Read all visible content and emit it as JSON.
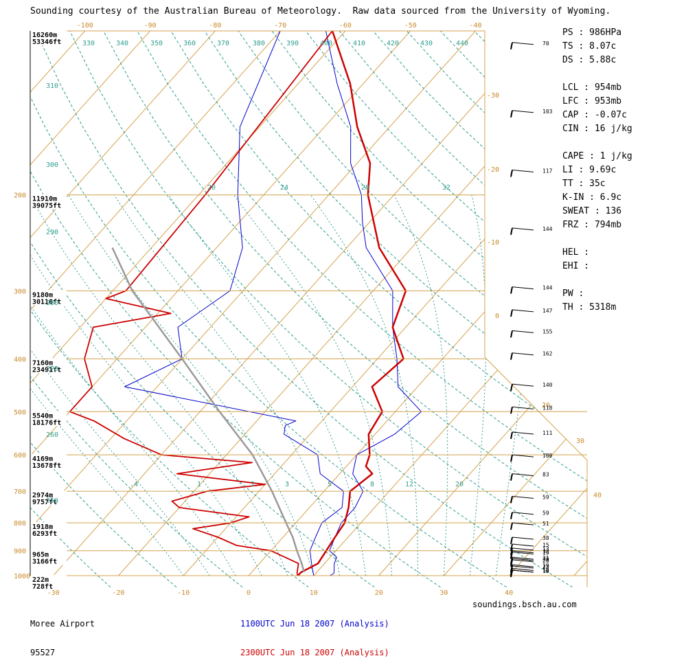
{
  "header": "Sounding courtesy of the Australian Bureau of Meteorology.  Raw data sourced from the University of Wyoming.",
  "footer": {
    "station_name": "Moree Airport",
    "station_id": "95527",
    "run1": "1100UTC Jun 18 2007 (Analysis)",
    "run2": "2300UTC Jun 18 2007 (Analysis)",
    "site": "soundings.bsch.au.com"
  },
  "stats": [
    {
      "label": "PS : 986HPa"
    },
    {
      "label": "TS : 8.07c"
    },
    {
      "label": "DS : 5.88c"
    },
    {
      "label": ""
    },
    {
      "label": "LCL : 954mb"
    },
    {
      "label": "LFC : 953mb"
    },
    {
      "label": "CAP : -0.07c"
    },
    {
      "label": "CIN : 16 j/kg"
    },
    {
      "label": ""
    },
    {
      "label": "CAPE : 1 j/kg"
    },
    {
      "label": "LI : 9.69c"
    },
    {
      "label": "TT : 35c"
    },
    {
      "label": "K-IN : 6.9c"
    },
    {
      "label": "SWEAT : 136"
    },
    {
      "label": "FRZ : 794mb"
    },
    {
      "label": ""
    },
    {
      "label": "HEL :"
    },
    {
      "label": "EHI :"
    },
    {
      "label": ""
    },
    {
      "label": "PW :"
    },
    {
      "label": "TH : 5318m"
    }
  ],
  "colors": {
    "isobar": "#d4a24c",
    "isotherm": "#d4a24c",
    "dry_adiabat": "#2f9d8f",
    "moist_adiabat": "#2f9d8f",
    "run1": "#0000cc",
    "run2": "#cc0000",
    "parcel": "#999999",
    "axis_label": "#c98a2b",
    "theta_label": "#2f9d8f"
  },
  "chart_data": {
    "type": "skew-t",
    "x_axis_ticks": [
      "-30",
      "-20",
      "-10",
      "0",
      "10",
      "20",
      "30",
      "40"
    ],
    "top_temp_ticks": [
      "-100",
      "-90",
      "-80",
      "-70",
      "-60",
      "-50",
      "-40"
    ],
    "right_temp_ticks": [
      "-30",
      "-20",
      "-10",
      "0",
      "20",
      "30",
      "40"
    ],
    "pressure_ticks": [
      "200",
      "300",
      "400",
      "500",
      "600",
      "700",
      "800",
      "900",
      "1000"
    ],
    "height_labels": [
      {
        "p": 100,
        "m": "16260m",
        "ft": "53346ft"
      },
      {
        "p": 200,
        "m": "11910m",
        "ft": "39075ft"
      },
      {
        "p": 300,
        "m": "9180m",
        "ft": "30118ft"
      },
      {
        "p": 400,
        "m": "7160m",
        "ft": "23491ft"
      },
      {
        "p": 500,
        "m": "5540m",
        "ft": "18176ft"
      },
      {
        "p": 600,
        "m": "4169m",
        "ft": "13678ft"
      },
      {
        "p": 700,
        "m": "2974m",
        "ft": "9757ft"
      },
      {
        "p": 800,
        "m": "1918m",
        "ft": "6293ft"
      },
      {
        "p": 900,
        "m": "965m",
        "ft": "3166ft"
      },
      {
        "p": 1000,
        "m": "222m",
        "ft": "728ft"
      }
    ],
    "theta_labels": [
      "330",
      "340",
      "350",
      "360",
      "370",
      "380",
      "390",
      "400",
      "410",
      "420",
      "430",
      "440",
      "310",
      "300",
      "290",
      "280",
      "270",
      "260",
      "250"
    ],
    "mixing_ratio_labels": [
      ".4",
      "1",
      "2",
      "3",
      "5",
      "8",
      "12",
      "20",
      "20",
      "24",
      "28",
      "32"
    ],
    "wind_speeds": [
      "70",
      "103",
      "117",
      "144",
      "144",
      "147",
      "155",
      "162",
      "140",
      "118",
      "111",
      "109",
      "83",
      "59",
      "59",
      "51",
      "38",
      "32",
      "30",
      "23",
      "19",
      "18",
      "16",
      "19",
      "20",
      "21",
      "19",
      "13",
      "15"
    ],
    "series": [
      {
        "name": "1100UTC Jun 18 2007 (Analysis)",
        "kind": "temperature",
        "points": [
          [
            1000,
            12.5
          ],
          [
            990,
            12.8
          ],
          [
            950,
            11.5
          ],
          [
            925,
            11
          ],
          [
            900,
            9
          ],
          [
            850,
            8
          ],
          [
            800,
            7
          ],
          [
            750,
            7
          ],
          [
            700,
            6
          ],
          [
            650,
            2
          ],
          [
            600,
            0
          ],
          [
            550,
            3
          ],
          [
            500,
            4
          ],
          [
            450,
            -3
          ],
          [
            400,
            -7
          ],
          [
            350,
            -12
          ],
          [
            300,
            -17
          ],
          [
            250,
            -27
          ],
          [
            225,
            -31
          ],
          [
            200,
            -35
          ],
          [
            175,
            -41
          ],
          [
            150,
            -46
          ],
          [
            125,
            -54
          ],
          [
            100,
            -63
          ]
        ]
      },
      {
        "name": "1100UTC Jun 18 2007 (Analysis)",
        "kind": "dewpoint",
        "points": [
          [
            1000,
            10
          ],
          [
            950,
            8
          ],
          [
            900,
            6
          ],
          [
            850,
            5
          ],
          [
            800,
            4
          ],
          [
            750,
            5
          ],
          [
            700,
            3
          ],
          [
            650,
            -3
          ],
          [
            600,
            -6
          ],
          [
            550,
            -14
          ],
          [
            530,
            -15
          ],
          [
            520,
            -14
          ],
          [
            450,
            -45
          ],
          [
            400,
            -40
          ],
          [
            350,
            -45
          ],
          [
            300,
            -42
          ],
          [
            250,
            -46
          ],
          [
            200,
            -54
          ],
          [
            150,
            -63
          ],
          [
            100,
            -70
          ]
        ]
      },
      {
        "name": "2300UTC Jun 18 2007 (Analysis)",
        "kind": "temperature",
        "points": [
          [
            1000,
            7.6
          ],
          [
            986,
            7.6
          ],
          [
            950,
            9
          ],
          [
            900,
            8.5
          ],
          [
            850,
            8
          ],
          [
            800,
            7.5
          ],
          [
            750,
            6
          ],
          [
            700,
            4
          ],
          [
            650,
            5
          ],
          [
            630,
            3
          ],
          [
            600,
            2
          ],
          [
            550,
            -1
          ],
          [
            500,
            -2
          ],
          [
            450,
            -7
          ],
          [
            400,
            -6
          ],
          [
            350,
            -12
          ],
          [
            300,
            -15
          ],
          [
            250,
            -25
          ],
          [
            200,
            -34
          ],
          [
            175,
            -38
          ],
          [
            150,
            -45
          ],
          [
            125,
            -52
          ],
          [
            100,
            -62
          ]
        ]
      },
      {
        "name": "2300UTC Jun 18 2007 (Analysis)",
        "kind": "dewpoint",
        "points": [
          [
            1000,
            7.5
          ],
          [
            986,
            7
          ],
          [
            950,
            6
          ],
          [
            900,
            0
          ],
          [
            880,
            -6
          ],
          [
            850,
            -10
          ],
          [
            820,
            -15
          ],
          [
            800,
            -10
          ],
          [
            780,
            -8
          ],
          [
            750,
            -20
          ],
          [
            730,
            -22
          ],
          [
            700,
            -18
          ],
          [
            680,
            -10
          ],
          [
            650,
            -25
          ],
          [
            620,
            -15
          ],
          [
            600,
            -30
          ],
          [
            560,
            -38
          ],
          [
            520,
            -45
          ],
          [
            500,
            -50
          ],
          [
            450,
            -50
          ],
          [
            400,
            -55
          ],
          [
            350,
            -58
          ],
          [
            330,
            -48
          ],
          [
            310,
            -60
          ],
          [
            300,
            -58
          ],
          [
            200,
            -59
          ],
          [
            100,
            -62
          ]
        ]
      },
      {
        "name": "parcel",
        "kind": "parcel",
        "points": [
          [
            986,
            8.07
          ],
          [
            950,
            6.5
          ],
          [
            900,
            4
          ],
          [
            850,
            1.5
          ],
          [
            800,
            -1.5
          ],
          [
            700,
            -8
          ],
          [
            600,
            -16
          ],
          [
            500,
            -27
          ],
          [
            400,
            -40
          ],
          [
            300,
            -57
          ],
          [
            250,
            -66
          ]
        ]
      }
    ]
  }
}
